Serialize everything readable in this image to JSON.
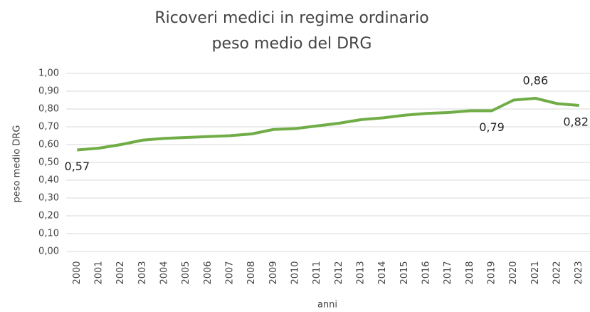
{
  "chart_data": {
    "type": "line",
    "title": [
      "Ricoveri medici in regime ordinario",
      "peso medio del DRG"
    ],
    "y_label": "peso medio DRG",
    "x_label": "anni",
    "categories": [
      "2000",
      "2001",
      "2002",
      "2003",
      "2004",
      "2005",
      "2006",
      "2007",
      "2008",
      "2009",
      "2010",
      "2011",
      "2012",
      "2013",
      "2014",
      "2015",
      "2016",
      "2017",
      "2018",
      "2019",
      "2020",
      "2021",
      "2022",
      "2023"
    ],
    "series": [
      {
        "name": "peso medio DRG",
        "color": "#70ad47",
        "values": [
          0.57,
          0.58,
          0.6,
          0.625,
          0.635,
          0.64,
          0.645,
          0.65,
          0.66,
          0.685,
          0.69,
          0.705,
          0.72,
          0.74,
          0.75,
          0.765,
          0.775,
          0.78,
          0.79,
          0.79,
          0.85,
          0.86,
          0.83,
          0.82
        ],
        "value_labels": [
          "0,57",
          null,
          null,
          null,
          null,
          null,
          null,
          null,
          null,
          null,
          null,
          null,
          null,
          null,
          null,
          null,
          null,
          null,
          null,
          "0,79",
          null,
          "0,86",
          null,
          "0,82"
        ]
      }
    ],
    "ylim": [
      0,
      1
    ],
    "yticks": [
      {
        "value": 0,
        "label": "0,00"
      },
      {
        "value": 0.1,
        "label": "0,10"
      },
      {
        "value": 0.2,
        "label": "0,20"
      },
      {
        "value": 0.3,
        "label": "0,30"
      },
      {
        "value": 0.4,
        "label": "0,40"
      },
      {
        "value": 0.5,
        "label": "0,50"
      },
      {
        "value": 0.6,
        "label": "0,60"
      },
      {
        "value": 0.7,
        "label": "0,70"
      },
      {
        "value": 0.8,
        "label": "0,80"
      },
      {
        "value": 0.9,
        "label": "0,90"
      },
      {
        "value": 1,
        "label": "1,00"
      }
    ],
    "grid": true
  }
}
